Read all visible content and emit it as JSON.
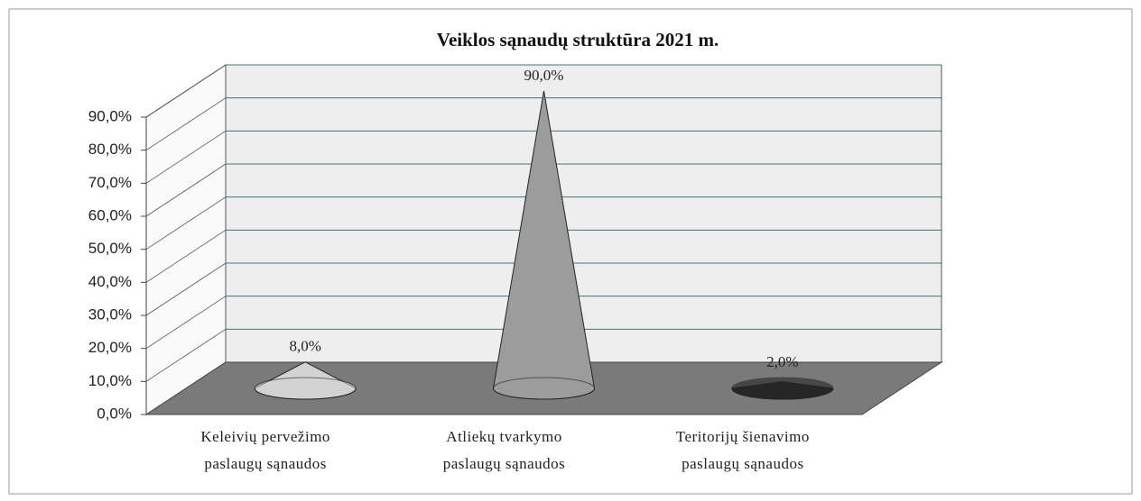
{
  "chart_data": {
    "type": "cone3d",
    "title": "Veiklos sąnaudų struktūra 2021 m.",
    "categories": [
      "Keleivių pervežimo\npaslaugų sąnaudos",
      "Atliekų tvarkymo\npaslaugų sąnaudos",
      "Teritorijų šienavimo\npaslaugų sąnaudos"
    ],
    "values": [
      8,
      90,
      2
    ],
    "value_labels": [
      "8,0%",
      "90,0%",
      "2,0%"
    ],
    "colors": [
      "#d2d2d2",
      "#9c9c9c",
      "#262626"
    ],
    "ylim": [
      0,
      90
    ],
    "yticks": [
      {
        "value": 0,
        "label": "0,0%"
      },
      {
        "value": 10,
        "label": "10,0%"
      },
      {
        "value": 20,
        "label": "20,0%"
      },
      {
        "value": 30,
        "label": "30,0%"
      },
      {
        "value": 40,
        "label": "40,0%"
      },
      {
        "value": 50,
        "label": "50,0%"
      },
      {
        "value": 60,
        "label": "60,0%"
      },
      {
        "value": 70,
        "label": "70,0%"
      },
      {
        "value": 80,
        "label": "80,0%"
      },
      {
        "value": 90,
        "label": "90,0%"
      }
    ],
    "grid": true
  }
}
